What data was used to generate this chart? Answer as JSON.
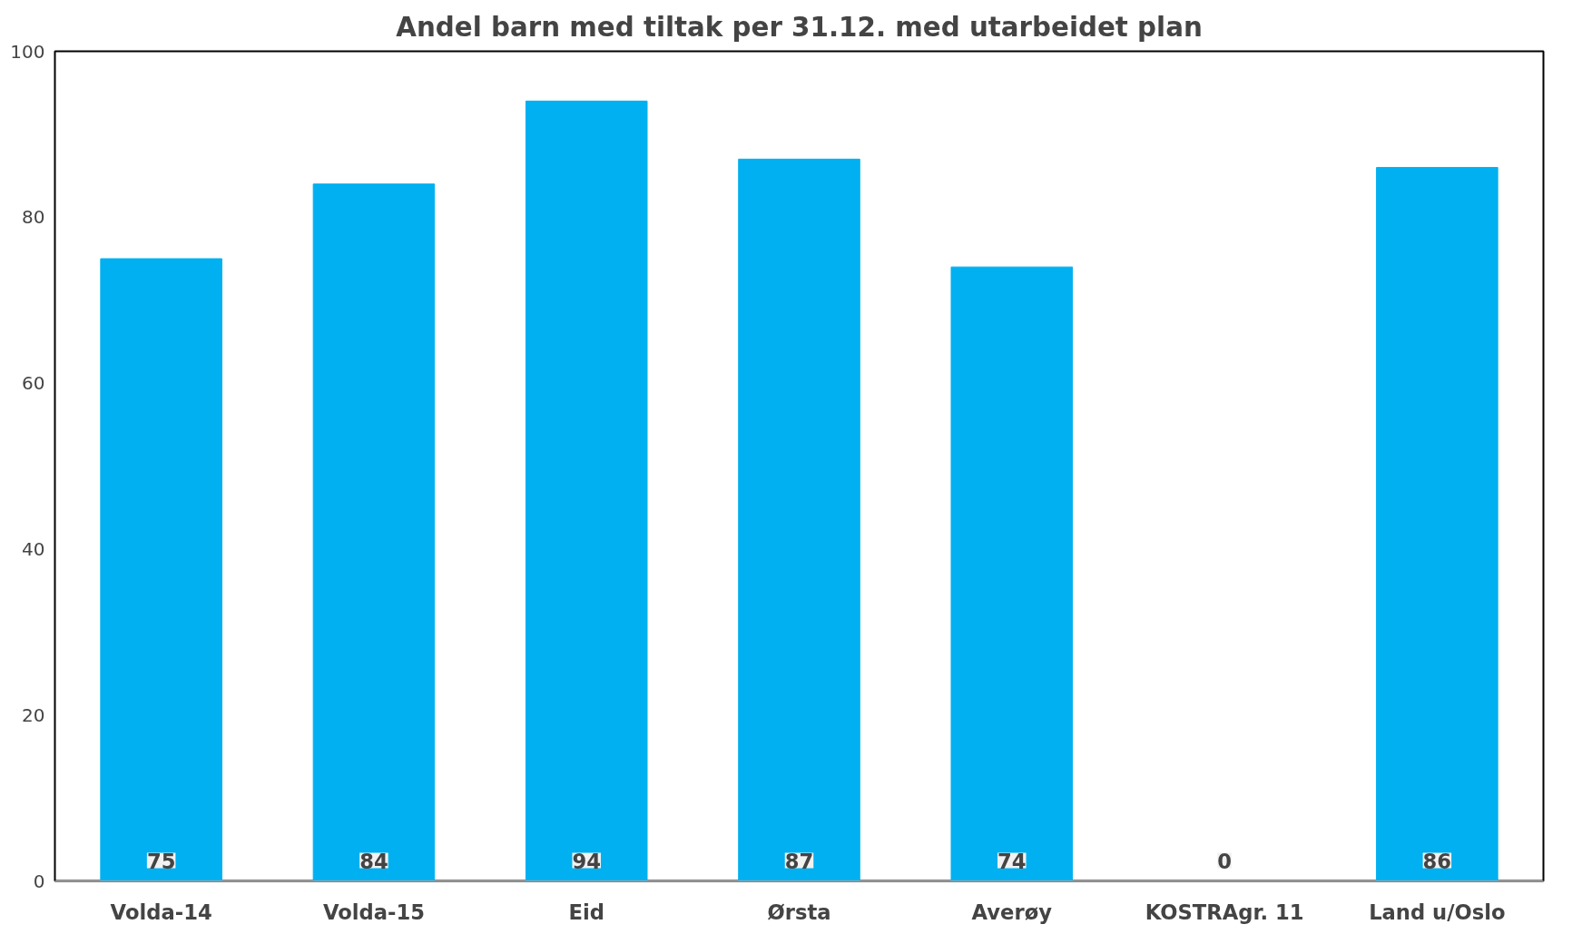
{
  "chart_data": {
    "type": "bar",
    "title": "Andel barn med tiltak per 31.12. med utarbeidet plan",
    "categories": [
      "Volda-14",
      "Volda-15",
      "Eid",
      "Ørsta",
      "Averøy",
      "KOSTRAgr. 11",
      "Land u/Oslo"
    ],
    "values": [
      75,
      84,
      94,
      87,
      74,
      0,
      86
    ],
    "color": "#00b0f0",
    "ylim": [
      0,
      100
    ],
    "yticks": [
      0,
      20,
      40,
      60,
      80,
      100
    ],
    "grid": false,
    "data_labels": true
  }
}
